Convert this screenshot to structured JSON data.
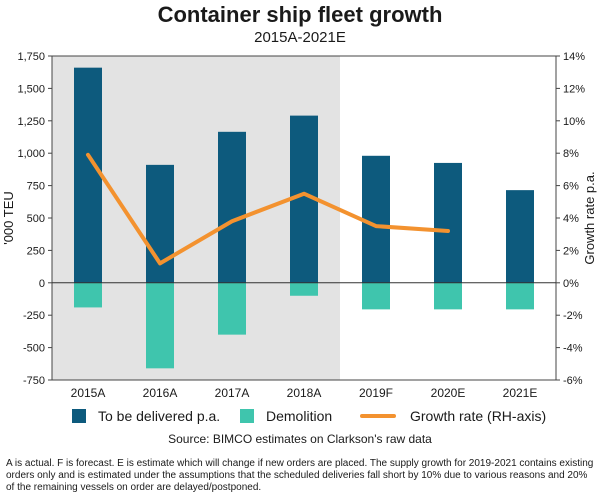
{
  "title": "Container ship fleet growth",
  "subtitle": "2015A-2021E",
  "colors": {
    "delivered": "#0d5a7d",
    "demolition": "#3fc5ad",
    "growth": "#f3922f",
    "actual_shade": "#e3e3e3"
  },
  "chart_data": {
    "type": "bar",
    "categories": [
      "2015A",
      "2016A",
      "2017A",
      "2018A",
      "2019F",
      "2020E",
      "2021E"
    ],
    "series": [
      {
        "name": "To be delivered p.a.",
        "type": "bar",
        "axis": "left",
        "values": [
          1660,
          910,
          1165,
          1290,
          980,
          925,
          715
        ]
      },
      {
        "name": "Demolition",
        "type": "bar",
        "axis": "left",
        "values": [
          -190,
          -660,
          -400,
          -100,
          -205,
          -205,
          -205
        ]
      },
      {
        "name": "Growth rate (RH-axis)",
        "type": "line",
        "axis": "right",
        "values": [
          7.9,
          1.2,
          3.8,
          5.5,
          3.5,
          3.2,
          null
        ]
      }
    ],
    "ylabel": "'000 TEU",
    "ylabel_right": "Growth rate p.a.",
    "ylim": [
      -750,
      1750
    ],
    "ylim_right": [
      -6,
      14
    ],
    "yticks": [
      "-750",
      "-500",
      "-250",
      "0",
      "250",
      "500",
      "750",
      "1,000",
      "1,250",
      "1,500",
      "1,750"
    ],
    "yticks_right": [
      "-6%",
      "-4%",
      "-2%",
      "0%",
      "2%",
      "4%",
      "6%",
      "8%",
      "10%",
      "12%",
      "14%"
    ],
    "shaded_categories": [
      "2015A",
      "2016A",
      "2017A",
      "2018A"
    ],
    "grid": false,
    "legend_position": "bottom"
  },
  "legend": {
    "delivered": "To be delivered p.a.",
    "demolition": "Demolition",
    "growth": "Growth rate (RH-axis)"
  },
  "source": "Source: BIMCO estimates on Clarkson's raw data",
  "note": "A is actual. F is forecast. E is estimate which will change if new orders are placed. The supply growth for 2019-2021 contains existing orders only and is estimated under the assumptions that the scheduled deliveries fall short by 10% due to various reasons and 20% of the remaining vessels on order are delayed/postponed."
}
